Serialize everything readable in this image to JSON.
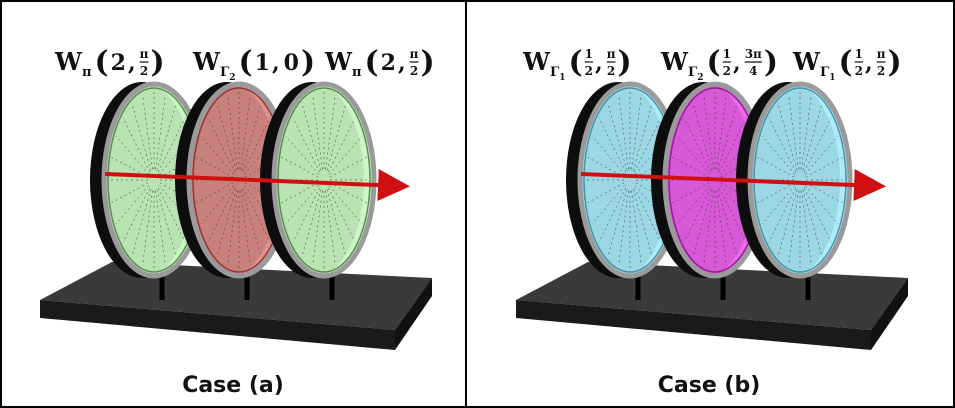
{
  "notation": {
    "open": "(",
    "sep": ",",
    "close": ")"
  },
  "panels": [
    {
      "caption": "Case (a)",
      "plates": [
        {
          "symbol": "W",
          "sub": "π",
          "index": null,
          "args": [
            "2",
            {
              "num": "π",
              "den": "2"
            }
          ]
        },
        {
          "symbol": "W",
          "sub": "Γ",
          "index": "2",
          "args": [
            "1",
            "0"
          ]
        },
        {
          "symbol": "W",
          "sub": "π",
          "index": null,
          "args": [
            "2",
            {
              "num": "π",
              "den": "2"
            }
          ]
        }
      ]
    },
    {
      "caption": "Case (b)",
      "plates": [
        {
          "symbol": "W",
          "sub": "Γ",
          "index": "1",
          "args": [
            {
              "num": "1",
              "den": "2"
            },
            {
              "num": "π",
              "den": "2"
            }
          ]
        },
        {
          "symbol": "W",
          "sub": "Γ",
          "index": "2",
          "args": [
            {
              "num": "1",
              "den": "2"
            },
            {
              "num": "3π",
              "den": "4"
            }
          ]
        },
        {
          "symbol": "W",
          "sub": "Γ",
          "index": "1",
          "args": [
            {
              "num": "1",
              "den": "2"
            },
            {
              "num": "π",
              "den": "2"
            }
          ]
        }
      ]
    }
  ]
}
